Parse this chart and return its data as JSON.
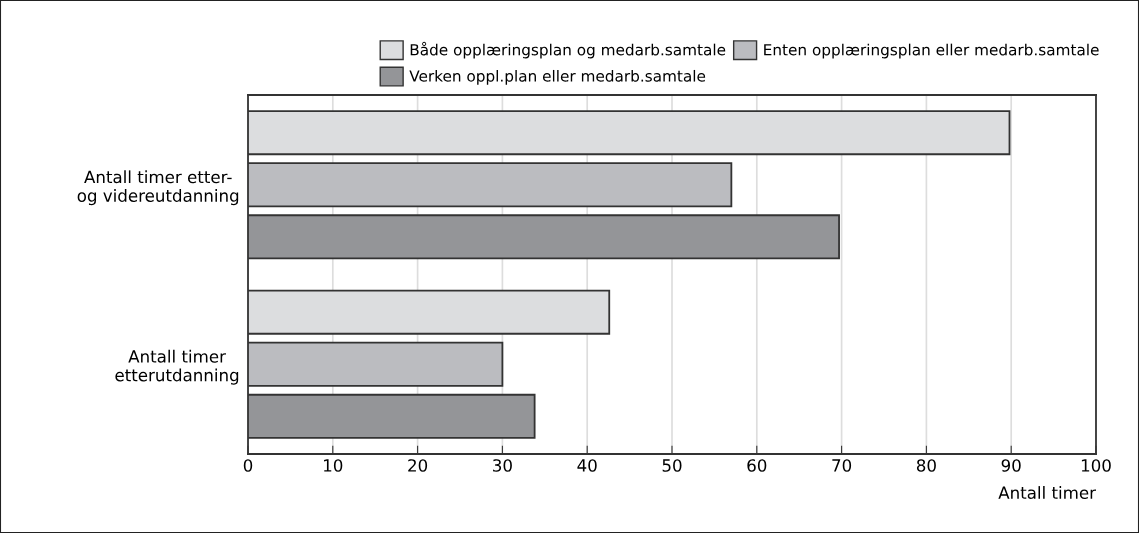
{
  "chart_data": {
    "type": "bar",
    "orientation": "horizontal",
    "categories": [
      "Antall timer etter-\nog videreutdanning",
      "Antall timer\netterutdanning"
    ],
    "series": [
      {
        "name": "Både opplæringsplan og medarb.samtale",
        "color": "#dcdddf",
        "values": [
          89.8,
          42.6
        ]
      },
      {
        "name": "Enten opplæringsplan eller medarb.samtale",
        "color": "#bbbcc0",
        "values": [
          57,
          30
        ]
      },
      {
        "name": "Verken oppl.plan eller medarb.samtale",
        "color": "#949598",
        "values": [
          69.7,
          33.8
        ]
      }
    ],
    "xlabel": "Antall timer",
    "xlim": [
      0,
      100
    ],
    "xticks": [
      0,
      10,
      20,
      30,
      40,
      50,
      60,
      70,
      80,
      90,
      100
    ],
    "grid": "x",
    "legend": "top"
  }
}
